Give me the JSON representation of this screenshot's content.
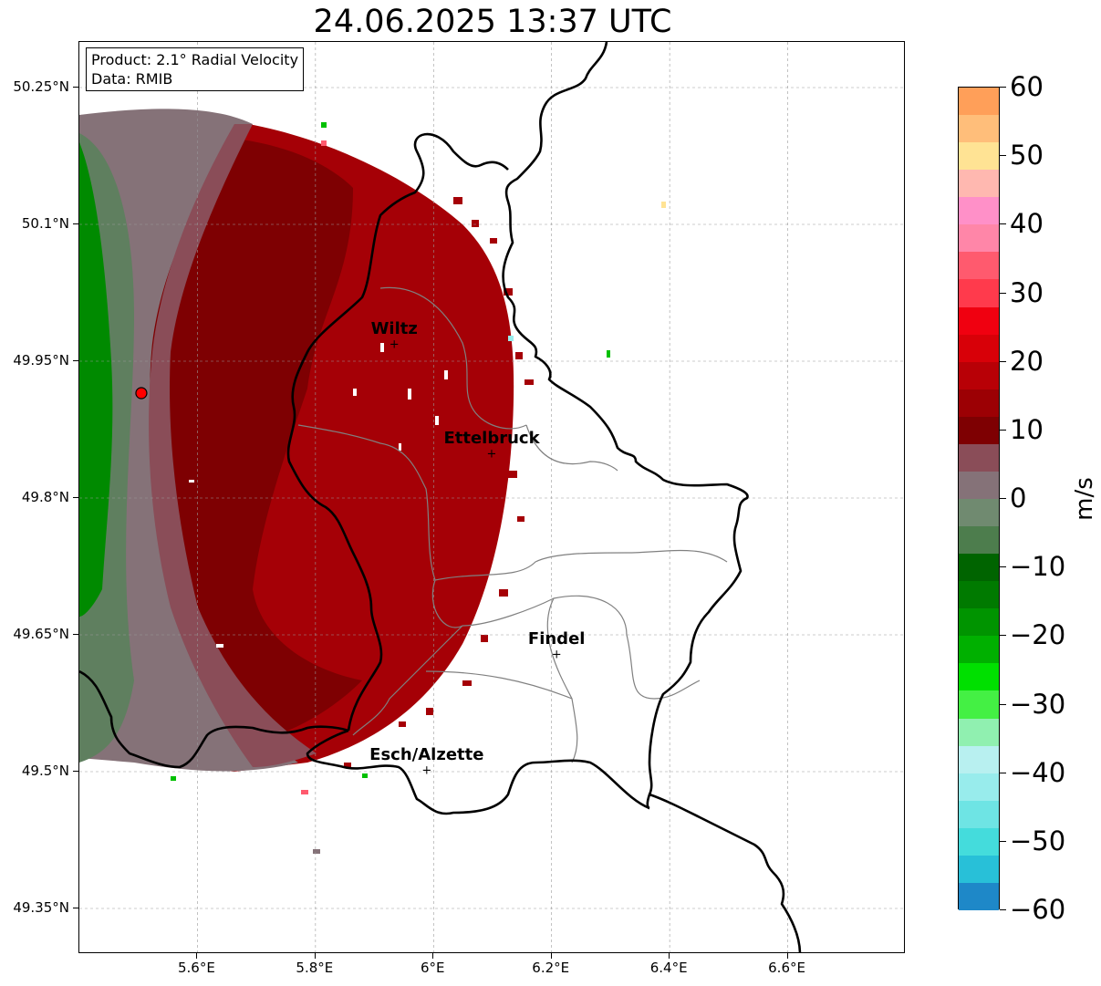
{
  "title": "24.06.2025 13:37 UTC",
  "info": {
    "product": "Product: 2.1° Radial Velocity",
    "data_source": "Data: RMIB"
  },
  "y_axis": {
    "ticks": [
      {
        "value": 50.25,
        "label": "50.25°N"
      },
      {
        "value": 50.1,
        "label": "50.1°N"
      },
      {
        "value": 49.95,
        "label": "49.95°N"
      },
      {
        "value": 49.8,
        "label": "49.8°N"
      },
      {
        "value": 49.65,
        "label": "49.65°N"
      },
      {
        "value": 49.5,
        "label": "49.5°N"
      },
      {
        "value": 49.35,
        "label": "49.35°N"
      }
    ],
    "range": [
      49.3,
      50.3
    ]
  },
  "x_axis": {
    "ticks": [
      {
        "value": 5.6,
        "label": "5.6°E"
      },
      {
        "value": 5.8,
        "label": "5.8°E"
      },
      {
        "value": 6.0,
        "label": "6°E"
      },
      {
        "value": 6.2,
        "label": "6.2°E"
      },
      {
        "value": 6.4,
        "label": "6.4°E"
      },
      {
        "value": 6.6,
        "label": "6.6°E"
      }
    ],
    "range": [
      5.4,
      6.8
    ]
  },
  "cities": [
    {
      "name": "Wiltz",
      "lon": 5.935,
      "lat": 49.967
    },
    {
      "name": "Ettelbruck",
      "lon": 6.1,
      "lat": 49.847
    },
    {
      "name": "Findel",
      "lon": 6.21,
      "lat": 49.627
    },
    {
      "name": "Esch/Alzette",
      "lon": 5.99,
      "lat": 49.5
    }
  ],
  "radar_site": {
    "lon": 5.505,
    "lat": 49.915,
    "color": "#ff0000"
  },
  "colorbar": {
    "unit": "m/s",
    "min": -60,
    "max": 60,
    "ticks": [
      {
        "value": 60,
        "label": "60"
      },
      {
        "value": 50,
        "label": "50"
      },
      {
        "value": 40,
        "label": "40"
      },
      {
        "value": 30,
        "label": "30"
      },
      {
        "value": 20,
        "label": "20"
      },
      {
        "value": 10,
        "label": "10"
      },
      {
        "value": 0,
        "label": "0"
      },
      {
        "value": -10,
        "label": "−10"
      },
      {
        "value": -20,
        "label": "−20"
      },
      {
        "value": -30,
        "label": "−30"
      },
      {
        "value": -40,
        "label": "−40"
      },
      {
        "value": -50,
        "label": "−50"
      },
      {
        "value": -60,
        "label": "−60"
      }
    ],
    "stops": [
      {
        "from": 56,
        "to": 60,
        "color": "#ff9f59"
      },
      {
        "from": 52,
        "to": 56,
        "color": "#ffbe7a"
      },
      {
        "from": 48,
        "to": 52,
        "color": "#ffe394"
      },
      {
        "from": 44,
        "to": 48,
        "color": "#ffb8b0"
      },
      {
        "from": 40,
        "to": 44,
        "color": "#ff90c8"
      },
      {
        "from": 36,
        "to": 40,
        "color": "#ff86a8"
      },
      {
        "from": 32,
        "to": 36,
        "color": "#ff5a6e"
      },
      {
        "from": 28,
        "to": 32,
        "color": "#ff3a4c"
      },
      {
        "from": 24,
        "to": 28,
        "color": "#f00010"
      },
      {
        "from": 20,
        "to": 24,
        "color": "#d80008"
      },
      {
        "from": 16,
        "to": 20,
        "color": "#b80006"
      },
      {
        "from": 12,
        "to": 16,
        "color": "#9c0004"
      },
      {
        "from": 8,
        "to": 12,
        "color": "#7e0002"
      },
      {
        "from": 4,
        "to": 8,
        "color": "#8a4d58"
      },
      {
        "from": 0,
        "to": 4,
        "color": "#857278"
      },
      {
        "from": -4,
        "to": 0,
        "color": "#708a70"
      },
      {
        "from": -8,
        "to": -4,
        "color": "#4d7d4d"
      },
      {
        "from": -12,
        "to": -8,
        "color": "#006400"
      },
      {
        "from": -16,
        "to": -12,
        "color": "#007a00"
      },
      {
        "from": -20,
        "to": -16,
        "color": "#009400"
      },
      {
        "from": -24,
        "to": -20,
        "color": "#00b000"
      },
      {
        "from": -28,
        "to": -24,
        "color": "#00e000"
      },
      {
        "from": -32,
        "to": -28,
        "color": "#44f044"
      },
      {
        "from": -36,
        "to": -32,
        "color": "#90f0b0"
      },
      {
        "from": -40,
        "to": -36,
        "color": "#b8f0f0"
      },
      {
        "from": -44,
        "to": -40,
        "color": "#98ecec"
      },
      {
        "from": -48,
        "to": -44,
        "color": "#6ee4e4"
      },
      {
        "from": -52,
        "to": -48,
        "color": "#44dcdc"
      },
      {
        "from": -56,
        "to": -52,
        "color": "#28c0d8"
      },
      {
        "from": -60,
        "to": -56,
        "color": "#1e88c8"
      }
    ]
  }
}
